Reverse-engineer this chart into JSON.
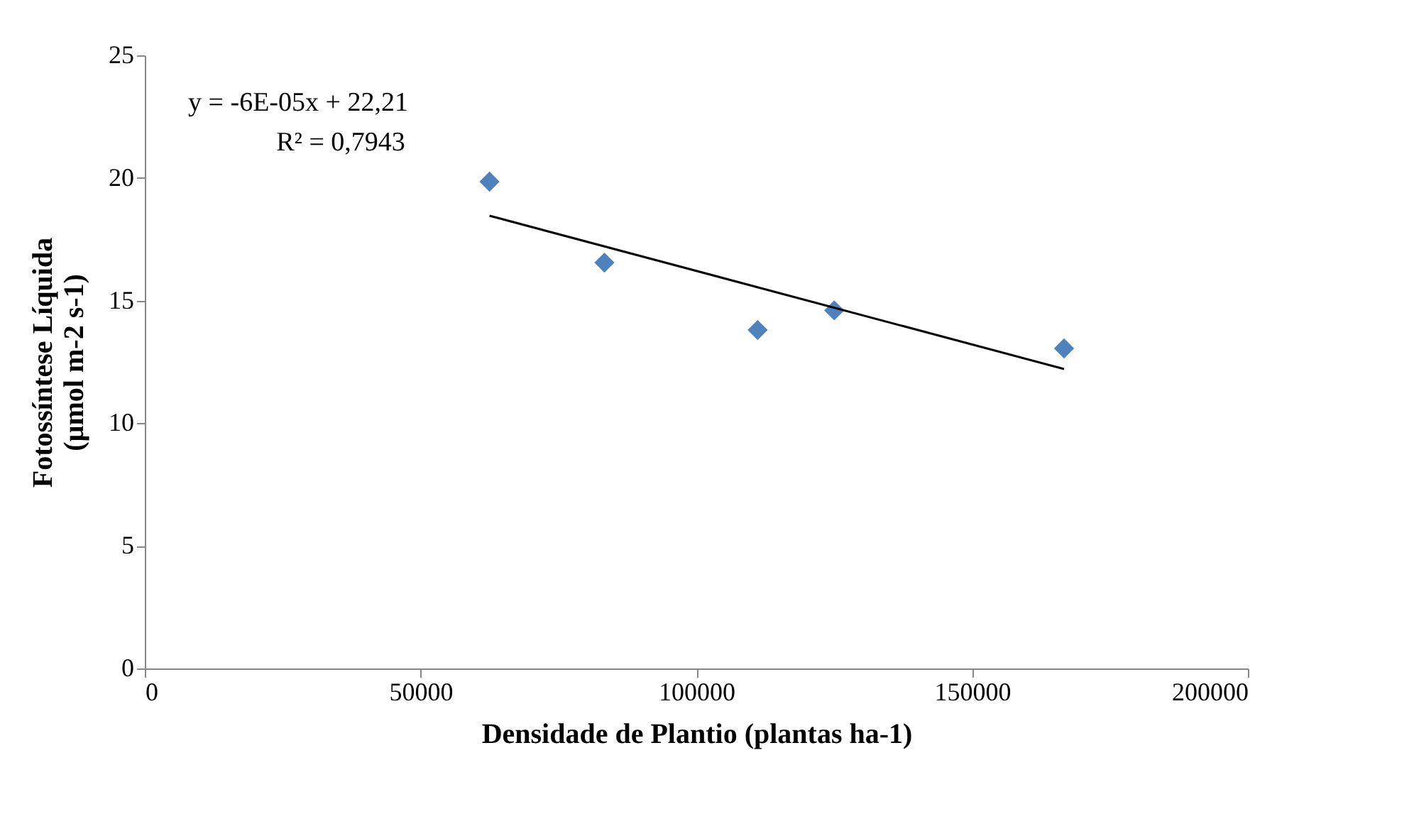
{
  "chart_data": {
    "type": "scatter",
    "xlabel": "Densidade de Plantio (plantas ha-1)",
    "ylabel": "Fotossíntese Líquida\n(µmol m-2 s-1)",
    "x": [
      62500,
      83333,
      111111,
      125000,
      166667
    ],
    "series": [
      {
        "type": "scatter",
        "color": "#4f81bd",
        "marker": "diamond",
        "values": [
          19.85,
          16.55,
          13.8,
          14.6,
          13.05
        ]
      },
      {
        "type": "line",
        "color": "#000000",
        "x": [
          62500,
          166667
        ],
        "values": [
          18.46,
          12.21
        ]
      }
    ],
    "annotations": [
      "y = -6E-05x + 22,21",
      "R² = 0,7943"
    ],
    "xlim": [
      0,
      200000
    ],
    "xticks": [
      0,
      50000,
      100000,
      150000,
      200000
    ],
    "ylim": [
      0,
      25
    ],
    "yticks": [
      0,
      5,
      10,
      15,
      20,
      25
    ],
    "grid": false
  }
}
